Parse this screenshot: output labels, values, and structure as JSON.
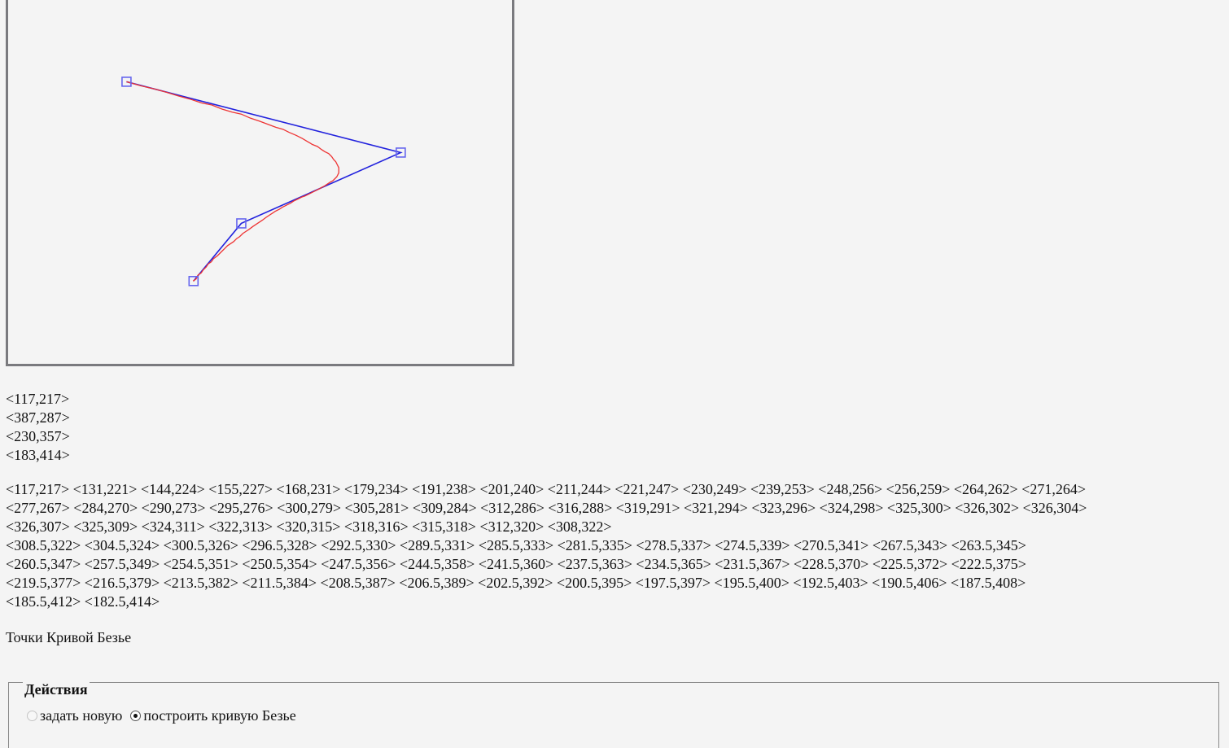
{
  "control_points": [
    "<117,217>",
    "<387,287>",
    "<230,357>",
    "<183,414>"
  ],
  "curve_points_lines": [
    "<117,217> <131,221> <144,224> <155,227> <168,231> <179,234> <191,238> <201,240> <211,244> <221,247> <230,249> <239,253> <248,256> <256,259> <264,262> <271,264>",
    "<277,267> <284,270> <290,273> <295,276> <300,279> <305,281> <309,284> <312,286> <316,288> <319,291> <321,294> <323,296> <324,298> <325,300> <326,302> <326,304>",
    "<326,307> <325,309> <324,311> <322,313> <320,315> <318,316> <315,318> <312,320> <308,322>",
    "<308.5,322> <304.5,324> <300.5,326> <296.5,328> <292.5,330> <289.5,331> <285.5,333> <281.5,335> <278.5,337> <274.5,339> <270.5,341> <267.5,343> <263.5,345>",
    "<260.5,347> <257.5,349> <254.5,351> <250.5,354> <247.5,356> <244.5,358> <241.5,360> <237.5,363> <234.5,365> <231.5,367> <228.5,370> <225.5,372> <222.5,375>",
    "<219.5,377> <216.5,379> <213.5,382> <211.5,384> <208.5,387> <206.5,389> <202.5,392> <200.5,395> <197.5,397> <195.5,400> <192.5,403> <190.5,406> <187.5,408>",
    "<185.5,412> <182.5,414>"
  ],
  "section_title": "Точки Кривой Безье",
  "actions": {
    "legend": "Действия",
    "options": [
      {
        "label": "задать новую",
        "checked": false
      },
      {
        "label": "построить кривую Безье",
        "checked": true
      }
    ]
  },
  "colors": {
    "control_polygon": "#2222dd",
    "curve": "#ee3333",
    "markers": "#6666ee"
  }
}
